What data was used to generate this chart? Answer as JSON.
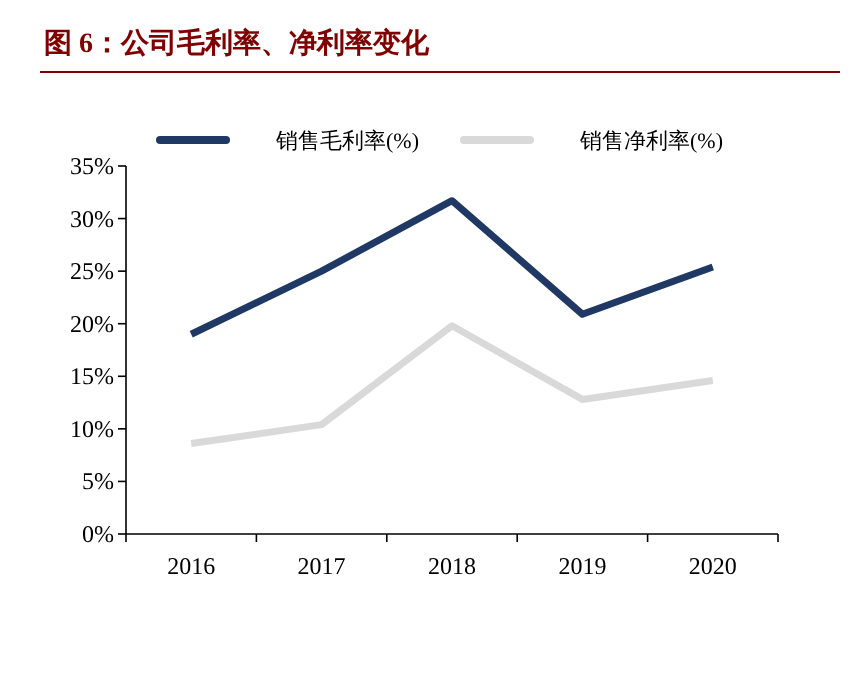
{
  "chart_data": {
    "type": "line",
    "title": "图 6：公司毛利率、净利率变化",
    "categories": [
      "2016",
      "2017",
      "2018",
      "2019",
      "2020"
    ],
    "series": [
      {
        "name": "销售毛利率(%)",
        "color": "#1f3864",
        "values": [
          19.0,
          25.0,
          31.7,
          20.9,
          25.4
        ]
      },
      {
        "name": "销售净利率(%)",
        "color": "#d9d9d9",
        "values": [
          8.6,
          10.4,
          19.8,
          12.8,
          14.6
        ]
      }
    ],
    "ylim": [
      0,
      35
    ],
    "yticks": [
      {
        "value": 0,
        "label": "0%"
      },
      {
        "value": 5,
        "label": "5%"
      },
      {
        "value": 10,
        "label": "10%"
      },
      {
        "value": 15,
        "label": "15%"
      },
      {
        "value": 20,
        "label": "20%"
      },
      {
        "value": 25,
        "label": "25%"
      },
      {
        "value": 30,
        "label": "30%"
      },
      {
        "value": 35,
        "label": "35%"
      }
    ],
    "legend": "top",
    "grid": false,
    "marker": "none",
    "line_style": "solid"
  }
}
